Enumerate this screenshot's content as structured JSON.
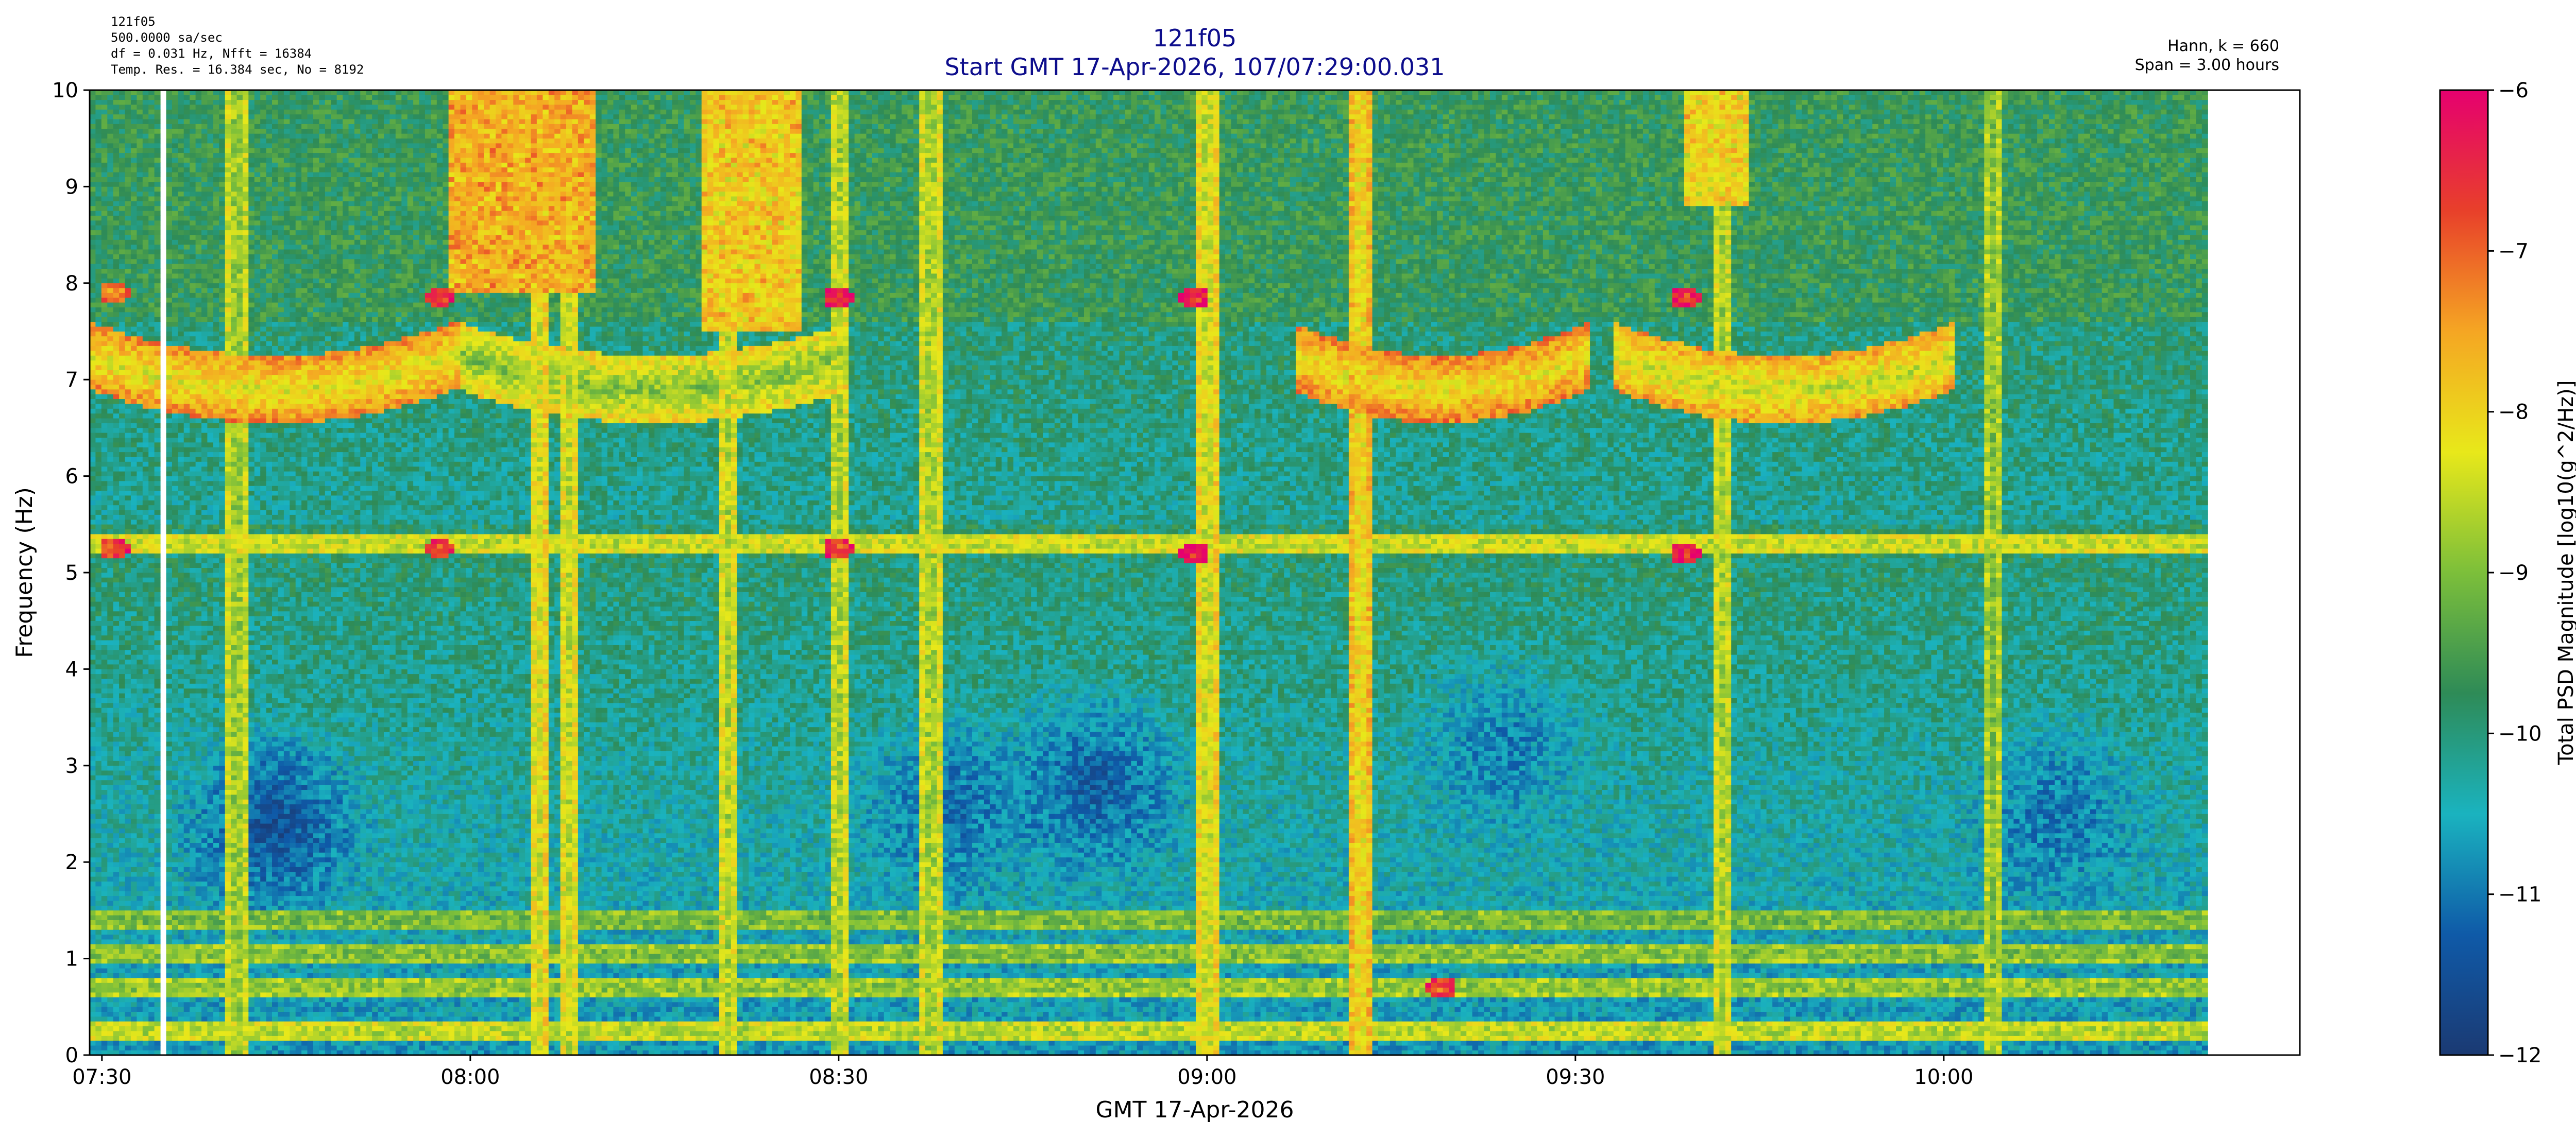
{
  "header": {
    "info_lines": [
      "121f05",
      "500.0000 sa/sec",
      "df = 0.031 Hz,  Nfft = 16384",
      "Temp. Res. = 16.384 sec, No = 8192"
    ],
    "right_lines": [
      "Hann, k = 660",
      "Span = 3.00 hours"
    ]
  },
  "colors": {
    "title": "#0d0d8c",
    "colormap": [
      "#1b3a73",
      "#0f5aa8",
      "#1ab3bf",
      "#2e8b57",
      "#7cbf3a",
      "#e8e81a",
      "#f5a623",
      "#e8402a",
      "#e6006f"
    ]
  },
  "chart_data": {
    "type": "heatmap",
    "title": "121f05",
    "subtitle": "Start GMT 17-Apr-2026, 107/07:29:00.031",
    "xlabel": "GMT 17-Apr-2026",
    "ylabel": "Frequency (Hz)",
    "colorbar_label": "Total PSD Magnitude [log10(g^2/Hz)]",
    "xlim_minutes_after_0729": [
      0,
      180
    ],
    "data_end_minutes_after_0729": 172.5,
    "gap_minutes_after_0729": [
      5.7,
      6.4
    ],
    "ylim": [
      0,
      10
    ],
    "clim": [
      -12,
      -6
    ],
    "x_ticks": [
      {
        "minutes": 1,
        "label": "07:30"
      },
      {
        "minutes": 31,
        "label": "08:00"
      },
      {
        "minutes": 61,
        "label": "08:30"
      },
      {
        "minutes": 91,
        "label": "09:00"
      },
      {
        "minutes": 121,
        "label": "09:30"
      },
      {
        "minutes": 151,
        "label": "10:00"
      }
    ],
    "y_ticks": [
      0,
      1,
      2,
      3,
      4,
      5,
      6,
      7,
      8,
      9,
      10
    ],
    "colorbar_ticks": [
      -12,
      -11,
      -10,
      -9,
      -8,
      -7,
      -6
    ],
    "features": {
      "background_low_freq": -10.7,
      "background_high_freq": -9.7,
      "steady_lines": [
        {
          "freq": 5.3,
          "level": -8.6
        },
        {
          "freq": 0.25,
          "level": -8.7
        },
        {
          "freq": 0.7,
          "level": -9.0
        },
        {
          "freq": 1.05,
          "level": -9.1
        },
        {
          "freq": 1.4,
          "level": -9.2
        }
      ],
      "curved_band_7hz": [
        {
          "start": 0,
          "end": 30,
          "freq": 6.9,
          "level": -8.3
        },
        {
          "start": 30,
          "end": 62,
          "freq": 6.9,
          "level": -9.0
        },
        {
          "start": 98,
          "end": 122,
          "freq": 6.9,
          "level": -8.2
        },
        {
          "start": 124,
          "end": 152,
          "freq": 6.9,
          "level": -8.5
        }
      ],
      "quiet_blobs": [
        {
          "t": 15,
          "f": 2.4,
          "level": -11.6
        },
        {
          "t": 70,
          "f": 2.6,
          "level": -11.2
        },
        {
          "t": 82,
          "f": 2.8,
          "level": -11.4
        },
        {
          "t": 115,
          "f": 3.2,
          "level": -11.0
        },
        {
          "t": 160,
          "f": 2.5,
          "level": -11.1
        }
      ],
      "hot_regions": [
        {
          "t0": 29,
          "t1": 41,
          "f0": 7.9,
          "f1": 10,
          "level": -7.9
        },
        {
          "t0": 50,
          "t1": 58,
          "f0": 7.5,
          "f1": 10,
          "level": -8.2
        },
        {
          "t0": 130,
          "t1": 135,
          "f0": 8.8,
          "f1": 10,
          "level": -8.3
        }
      ],
      "vertical_streaks": [
        {
          "t": 12,
          "level": -9.0
        },
        {
          "t": 36.5,
          "level": -8.5
        },
        {
          "t": 39,
          "level": -8.6
        },
        {
          "t": 52,
          "level": -8.7
        },
        {
          "t": 61,
          "level": -8.8
        },
        {
          "t": 68.5,
          "level": -8.9
        },
        {
          "t": 91,
          "level": -8.6
        },
        {
          "t": 103.5,
          "level": -8.3
        },
        {
          "t": 133,
          "level": -8.8
        },
        {
          "t": 155,
          "level": -9.0
        }
      ],
      "hot_spots": [
        {
          "t": 2,
          "f": 5.25,
          "level": -7.2
        },
        {
          "t": 2,
          "f": 7.9,
          "level": -7.6
        },
        {
          "t": 28.5,
          "f": 5.25,
          "level": -7.1
        },
        {
          "t": 28.5,
          "f": 7.85,
          "level": -7.1
        },
        {
          "t": 61,
          "f": 5.25,
          "level": -7.1
        },
        {
          "t": 61,
          "f": 7.85,
          "level": -6.9
        },
        {
          "t": 90,
          "f": 5.2,
          "level": -6.7
        },
        {
          "t": 90,
          "f": 7.85,
          "level": -6.9
        },
        {
          "t": 130,
          "f": 5.2,
          "level": -6.8
        },
        {
          "t": 130,
          "f": 7.85,
          "level": -6.9
        },
        {
          "t": 110,
          "f": 0.7,
          "level": -7.2
        }
      ]
    }
  }
}
